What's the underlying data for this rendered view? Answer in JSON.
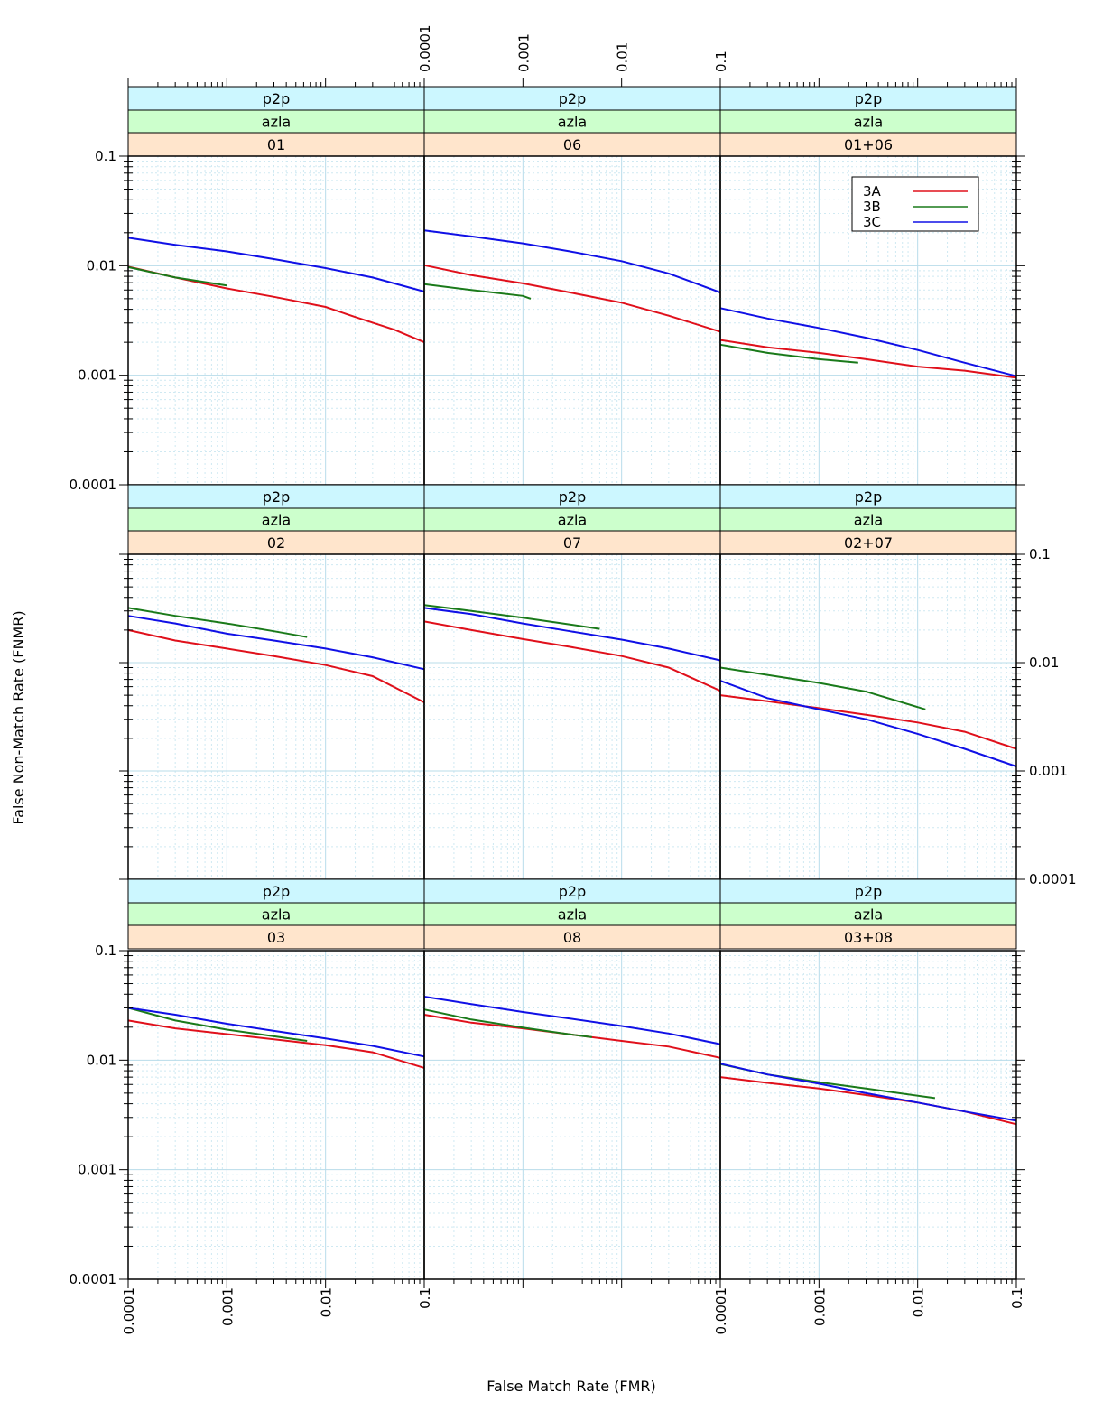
{
  "figure": {
    "xlabel": "False Match Rate (FMR)",
    "ylabel": "False Non-Match Rate (FNMR)"
  },
  "colors": {
    "strip1": "#ccf7ff",
    "strip2": "#ccffcc",
    "strip3": "#ffe5cc",
    "grid": "#cfe9f2",
    "3A": "#e0101b",
    "3B": "#1a7a1a",
    "3C": "#1010e6"
  },
  "legend": {
    "placement": "top-right of panel 01+06",
    "entries": [
      {
        "label": "3A",
        "color": "#e0101b"
      },
      {
        "label": "3B",
        "color": "#1a7a1a"
      },
      {
        "label": "3C",
        "color": "#1010e6"
      }
    ]
  },
  "chart_data": {
    "type": "line",
    "layout": "3x3 lattice",
    "xscale": "log",
    "yscale": "log",
    "xlim": [
      0.0001,
      0.1
    ],
    "ylim": [
      0.0001,
      0.1
    ],
    "x_ticks": [
      "0.0001",
      "0.001",
      "0.01",
      "0.1"
    ],
    "y_ticks": [
      "0.0001",
      "0.001",
      "0.01",
      "0.1"
    ],
    "grid": true,
    "panels": [
      {
        "strips": [
          "p2p",
          "azla",
          "01"
        ],
        "series": [
          {
            "name": "3A",
            "x": [
              0.0001,
              0.0003,
              0.001,
              0.003,
              0.01,
              0.02,
              0.05,
              0.1
            ],
            "y": [
              0.0098,
              0.0078,
              0.0062,
              0.0052,
              0.0042,
              0.0034,
              0.0026,
              0.002
            ]
          },
          {
            "name": "3B",
            "x": [
              0.0001,
              0.0003,
              0.001
            ],
            "y": [
              0.0097,
              0.0078,
              0.0066
            ]
          },
          {
            "name": "3C",
            "x": [
              0.0001,
              0.0003,
              0.001,
              0.003,
              0.01,
              0.03,
              0.1
            ],
            "y": [
              0.018,
              0.0155,
              0.0135,
              0.0115,
              0.0095,
              0.0078,
              0.0058
            ]
          }
        ]
      },
      {
        "strips": [
          "p2p",
          "azla",
          "06"
        ],
        "series": [
          {
            "name": "3A",
            "x": [
              0.0001,
              0.0003,
              0.001,
              0.003,
              0.01,
              0.03,
              0.1
            ],
            "y": [
              0.0101,
              0.0082,
              0.0069,
              0.0057,
              0.0046,
              0.0035,
              0.0025
            ]
          },
          {
            "name": "3B",
            "x": [
              0.0001,
              0.0003,
              0.001,
              0.0012
            ],
            "y": [
              0.0068,
              0.006,
              0.0053,
              0.005
            ]
          },
          {
            "name": "3C",
            "x": [
              0.0001,
              0.0003,
              0.001,
              0.003,
              0.01,
              0.03,
              0.1
            ],
            "y": [
              0.021,
              0.0185,
              0.016,
              0.0135,
              0.011,
              0.0085,
              0.0057
            ]
          }
        ]
      },
      {
        "strips": [
          "p2p",
          "azla",
          "01+06"
        ],
        "series": [
          {
            "name": "3A",
            "x": [
              0.0001,
              0.0003,
              0.001,
              0.003,
              0.01,
              0.03,
              0.1
            ],
            "y": [
              0.0021,
              0.0018,
              0.0016,
              0.0014,
              0.0012,
              0.0011,
              0.00095
            ]
          },
          {
            "name": "3B",
            "x": [
              0.0001,
              0.0003,
              0.001,
              0.0025
            ],
            "y": [
              0.0019,
              0.0016,
              0.0014,
              0.0013
            ]
          },
          {
            "name": "3C",
            "x": [
              0.0001,
              0.0003,
              0.001,
              0.003,
              0.01,
              0.03,
              0.1
            ],
            "y": [
              0.0041,
              0.0033,
              0.0027,
              0.0022,
              0.0017,
              0.0013,
              0.00098
            ]
          }
        ]
      },
      {
        "strips": [
          "p2p",
          "azla",
          "02"
        ],
        "series": [
          {
            "name": "3A",
            "x": [
              0.0001,
              0.0003,
              0.001,
              0.003,
              0.01,
              0.03,
              0.1
            ],
            "y": [
              0.02,
              0.016,
              0.0135,
              0.0115,
              0.0095,
              0.0075,
              0.0043
            ]
          },
          {
            "name": "3B",
            "x": [
              0.0001,
              0.0003,
              0.001,
              0.003,
              0.0065
            ],
            "y": [
              0.032,
              0.027,
              0.023,
              0.0195,
              0.0172
            ]
          },
          {
            "name": "3C",
            "x": [
              0.0001,
              0.0003,
              0.001,
              0.003,
              0.01,
              0.03,
              0.1
            ],
            "y": [
              0.027,
              0.023,
              0.0185,
              0.016,
              0.0135,
              0.0112,
              0.0087
            ]
          }
        ]
      },
      {
        "strips": [
          "p2p",
          "azla",
          "07"
        ],
        "series": [
          {
            "name": "3A",
            "x": [
              0.0001,
              0.0003,
              0.001,
              0.003,
              0.01,
              0.03,
              0.1
            ],
            "y": [
              0.024,
              0.02,
              0.0165,
              0.014,
              0.0115,
              0.009,
              0.0055
            ]
          },
          {
            "name": "3B",
            "x": [
              0.0001,
              0.0003,
              0.001,
              0.003,
              0.006
            ],
            "y": [
              0.034,
              0.03,
              0.026,
              0.0225,
              0.0205
            ]
          },
          {
            "name": "3C",
            "x": [
              0.0001,
              0.0003,
              0.001,
              0.003,
              0.01,
              0.03,
              0.1
            ],
            "y": [
              0.032,
              0.028,
              0.023,
              0.0195,
              0.0163,
              0.0135,
              0.0105
            ]
          }
        ]
      },
      {
        "strips": [
          "p2p",
          "azla",
          "02+07"
        ],
        "series": [
          {
            "name": "3A",
            "x": [
              0.0001,
              0.0003,
              0.001,
              0.003,
              0.01,
              0.03,
              0.1
            ],
            "y": [
              0.005,
              0.0044,
              0.0038,
              0.0033,
              0.0028,
              0.0023,
              0.0016
            ]
          },
          {
            "name": "3B",
            "x": [
              0.0001,
              0.0003,
              0.001,
              0.003,
              0.012
            ],
            "y": [
              0.009,
              0.0077,
              0.0065,
              0.0054,
              0.0037
            ]
          },
          {
            "name": "3C",
            "x": [
              0.0001,
              0.0003,
              0.001,
              0.003,
              0.01,
              0.03,
              0.1
            ],
            "y": [
              0.0068,
              0.0047,
              0.0037,
              0.003,
              0.0022,
              0.0016,
              0.0011
            ]
          }
        ]
      },
      {
        "strips": [
          "p2p",
          "azla",
          "03"
        ],
        "series": [
          {
            "name": "3A",
            "x": [
              0.0001,
              0.0003,
              0.001,
              0.003,
              0.01,
              0.03,
              0.1
            ],
            "y": [
              0.023,
              0.0195,
              0.0173,
              0.0155,
              0.0137,
              0.0118,
              0.0085
            ]
          },
          {
            "name": "3B",
            "x": [
              0.0001,
              0.0003,
              0.001,
              0.003,
              0.0065
            ],
            "y": [
              0.03,
              0.023,
              0.019,
              0.0165,
              0.015
            ]
          },
          {
            "name": "3C",
            "x": [
              0.0001,
              0.0003,
              0.001,
              0.003,
              0.01,
              0.03,
              0.1
            ],
            "y": [
              0.03,
              0.026,
              0.0215,
              0.0185,
              0.0158,
              0.0135,
              0.0108
            ]
          }
        ]
      },
      {
        "strips": [
          "p2p",
          "azla",
          "08"
        ],
        "series": [
          {
            "name": "3A",
            "x": [
              0.0001,
              0.0003,
              0.001,
              0.003,
              0.01,
              0.03,
              0.1
            ],
            "y": [
              0.026,
              0.022,
              0.0195,
              0.0172,
              0.015,
              0.0133,
              0.0105
            ]
          },
          {
            "name": "3B",
            "x": [
              0.0001,
              0.0003,
              0.001,
              0.003,
              0.005
            ],
            "y": [
              0.029,
              0.0235,
              0.0198,
              0.0172,
              0.0162
            ]
          },
          {
            "name": "3C",
            "x": [
              0.0001,
              0.0003,
              0.001,
              0.003,
              0.01,
              0.03,
              0.1
            ],
            "y": [
              0.038,
              0.0325,
              0.0275,
              0.024,
              0.0205,
              0.0175,
              0.014
            ]
          }
        ]
      },
      {
        "strips": [
          "p2p",
          "azla",
          "03+08"
        ],
        "series": [
          {
            "name": "3A",
            "x": [
              0.0001,
              0.0003,
              0.001,
              0.003,
              0.01,
              0.03,
              0.1
            ],
            "y": [
              0.007,
              0.0062,
              0.0055,
              0.0048,
              0.0041,
              0.0034,
              0.0026
            ]
          },
          {
            "name": "3B",
            "x": [
              0.0001,
              0.0003,
              0.001,
              0.003,
              0.015
            ],
            "y": [
              0.0092,
              0.0074,
              0.0063,
              0.0055,
              0.0045
            ]
          },
          {
            "name": "3C",
            "x": [
              0.0001,
              0.0003,
              0.001,
              0.003,
              0.01,
              0.03,
              0.1
            ],
            "y": [
              0.0093,
              0.0074,
              0.0061,
              0.005,
              0.0041,
              0.0034,
              0.0028
            ]
          }
        ]
      }
    ]
  }
}
